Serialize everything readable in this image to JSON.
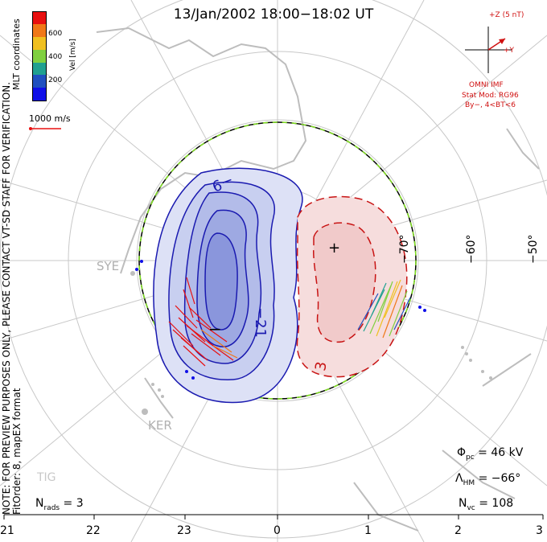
{
  "title": "13/Jan/2002 18:00−18:02 UT",
  "side_note_line1": "NOTE: FOR PREVIEW PURPOSES ONLY, PLEASE CONTACT VT-SD STAFF FOR VERIFICATION.",
  "side_note_line2": "FitOrder: 8, mapEX format",
  "coord_label": "MLT coordinates",
  "colorbar": {
    "axis_label": "Vel [m/s]",
    "ticks": [
      "600",
      "400",
      "200"
    ],
    "colors": [
      "#e81010",
      "#f07818",
      "#f0c020",
      "#80d040",
      "#20a090",
      "#2050c0",
      "#1010e8"
    ]
  },
  "vector_scale": "1000 m/s",
  "imf": {
    "z_label": "+Z (5 nT)",
    "y_label": "+Y",
    "source": "OMNI IMF",
    "model_line1": "Stat Mod: RG96",
    "model_line2": "By−, 4<BT<6"
  },
  "stations": [
    "SYE",
    "KER",
    "TIG"
  ],
  "lat_labels": [
    "−70°",
    "−60°",
    "−50°"
  ],
  "contour_labels": [
    "−9",
    "−21",
    "3"
  ],
  "markers": {
    "min": "−",
    "max": "+"
  },
  "stats": {
    "phi_pc": "46 kV",
    "lambda_hm": "−66°",
    "n_vc": "108",
    "n_rads": "3"
  },
  "mlt_ticks": [
    "21",
    "22",
    "23",
    "0",
    "1",
    "2",
    "3"
  ],
  "potential": {
    "min_kv": -21,
    "max_kv": 3
  }
}
